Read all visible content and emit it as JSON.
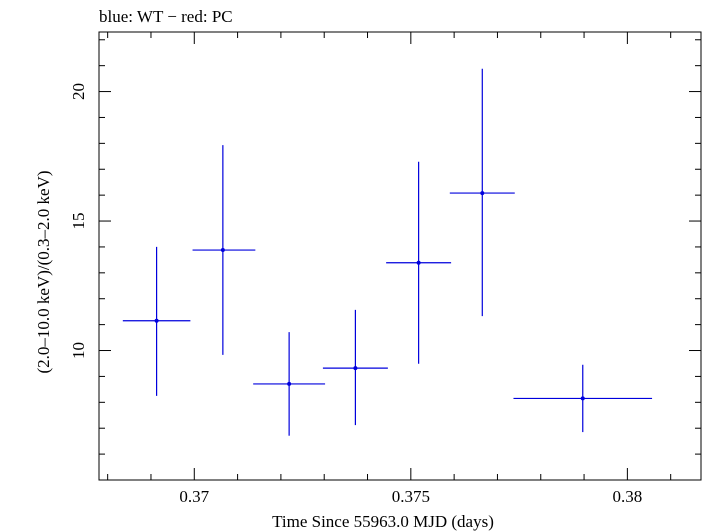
{
  "chart_data": {
    "type": "scatter",
    "title": "blue: WT − red: PC",
    "xlabel": "Time Since 55963.0 MJD (days)",
    "ylabel": "(2.0–10.0 keV)/(0.3–2.0 keV)",
    "xlim": [
      0.3678,
      0.3817
    ],
    "ylim": [
      5.0,
      22.3
    ],
    "x_ticks": [
      {
        "value": 0.37,
        "label": "0.37"
      },
      {
        "value": 0.375,
        "label": "0.375"
      },
      {
        "value": 0.38,
        "label": "0.38"
      }
    ],
    "y_ticks": [
      {
        "value": 10,
        "label": "10"
      },
      {
        "value": 15,
        "label": "15"
      },
      {
        "value": 20,
        "label": "20"
      }
    ],
    "grid": false,
    "series": [
      {
        "color": "#0000dd",
        "points": [
          {
            "x": 0.36913,
            "xerr_low": 0.00078,
            "xerr_high": 0.00078,
            "y": 11.15,
            "yerr_low": 2.9,
            "yerr_high": 2.85
          },
          {
            "x": 0.37066,
            "xerr_low": 0.0007,
            "xerr_high": 0.00075,
            "y": 13.88,
            "yerr_low": 4.05,
            "yerr_high": 4.05
          },
          {
            "x": 0.37219,
            "xerr_low": 0.00083,
            "xerr_high": 0.00083,
            "y": 8.71,
            "yerr_low": 2.0,
            "yerr_high": 2.0
          },
          {
            "x": 0.37372,
            "xerr_low": 0.00075,
            "xerr_high": 0.00075,
            "y": 9.32,
            "yerr_low": 2.2,
            "yerr_high": 2.25
          },
          {
            "x": 0.37518,
            "xerr_low": 0.00075,
            "xerr_high": 0.00075,
            "y": 13.39,
            "yerr_low": 3.9,
            "yerr_high": 3.9
          },
          {
            "x": 0.37665,
            "xerr_low": 0.00075,
            "xerr_high": 0.00075,
            "y": 16.08,
            "yerr_low": 4.75,
            "yerr_high": 4.8
          },
          {
            "x": 0.37897,
            "xerr_low": 0.0016,
            "xerr_high": 0.0016,
            "y": 8.15,
            "yerr_low": 1.3,
            "yerr_high": 1.3
          }
        ]
      }
    ]
  }
}
